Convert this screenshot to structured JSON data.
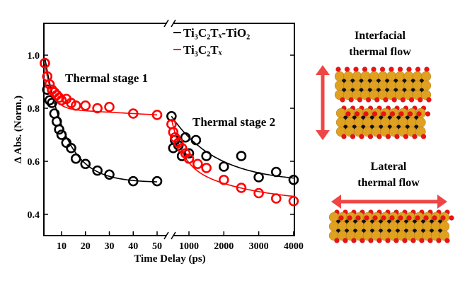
{
  "chart_data": {
    "type": "scatter",
    "xlabel": "Time Delay (ps)",
    "ylabel": "Δ Abs. (Norm.)",
    "ylim": [
      0.32,
      1.12
    ],
    "broken_x_axis": true,
    "x_segments": [
      {
        "xlim": [
          2.5,
          55
        ],
        "ticks": [
          "10",
          "20",
          "30",
          "40",
          "50"
        ]
      },
      {
        "xlim": [
          500,
          4000
        ],
        "ticks": [
          "1000",
          "2000",
          "3000",
          "4000"
        ]
      }
    ],
    "y_ticks": [
      "0.4",
      "0.6",
      "0.8",
      "1.0"
    ],
    "legend_position": "top-right",
    "annotations": [
      "Thermal stage 1",
      "Thermal stage 2"
    ],
    "series": [
      {
        "name": "Ti₃C₂Tₓ-TiO₂",
        "color": "#000000",
        "marker": "open-circle",
        "fit_line": true,
        "x": [
          3,
          4,
          5,
          6,
          7,
          8,
          9,
          10,
          12,
          14,
          16,
          20,
          25,
          30,
          40,
          50,
          500,
          550,
          600,
          700,
          800,
          900,
          1000,
          1200,
          1500,
          2000,
          2500,
          3000,
          3500,
          4000
        ],
        "y": [
          0.97,
          0.87,
          0.83,
          0.82,
          0.78,
          0.75,
          0.72,
          0.7,
          0.67,
          0.65,
          0.61,
          0.59,
          0.565,
          0.55,
          0.525,
          0.525,
          0.77,
          0.65,
          0.68,
          0.66,
          0.62,
          0.69,
          0.63,
          0.68,
          0.62,
          0.58,
          0.62,
          0.54,
          0.56,
          0.53
        ]
      },
      {
        "name": "Ti₃C₂Tₓ",
        "color": "#ff0000",
        "marker": "open-circle",
        "fit_line": true,
        "x": [
          3,
          4,
          5,
          6,
          7,
          8,
          9,
          10,
          12,
          14,
          16,
          20,
          25,
          30,
          40,
          50,
          500,
          550,
          600,
          700,
          800,
          900,
          1000,
          1250,
          1500,
          2000,
          2500,
          3000,
          3500,
          4000
        ],
        "y": [
          0.97,
          0.92,
          0.89,
          0.87,
          0.86,
          0.85,
          0.84,
          0.83,
          0.835,
          0.82,
          0.81,
          0.81,
          0.8,
          0.805,
          0.78,
          0.775,
          0.74,
          0.71,
          0.69,
          0.67,
          0.65,
          0.63,
          0.61,
          0.59,
          0.575,
          0.53,
          0.5,
          0.48,
          0.46,
          0.45
        ]
      }
    ]
  },
  "illustration": {
    "top_label_line1": "Interfacial",
    "top_label_line2": "thermal flow",
    "bottom_label_line1": "Lateral",
    "bottom_label_line2": "thermal flow",
    "arrow_color": "#f04545",
    "atom_colors": {
      "ti": "#e0a020",
      "o": "#ee1111",
      "c": "#111111"
    }
  }
}
